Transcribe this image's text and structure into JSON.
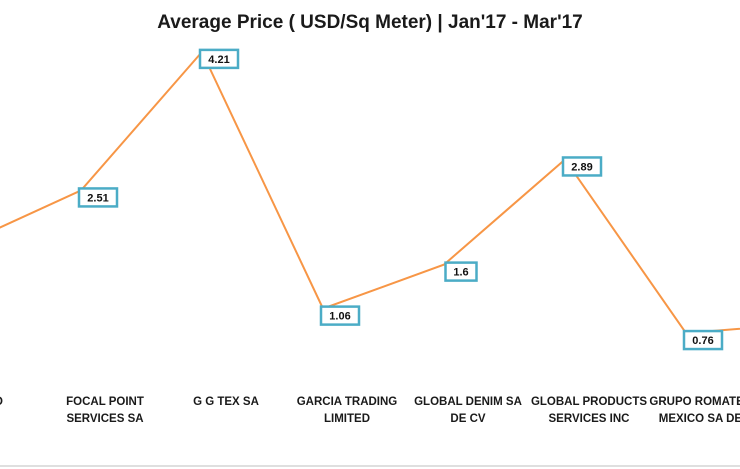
{
  "chart_data": {
    "type": "line",
    "title": "Average Price ( USD/Sq Meter) | Jan'17 - Mar'17",
    "xlabel": "",
    "ylabel": "",
    "categories": [
      [
        "O"
      ],
      [
        "FOCAL POINT",
        "SERVICES SA"
      ],
      [
        "G G TEX SA"
      ],
      [
        "GARCIA TRADING",
        "LIMITED"
      ],
      [
        "GLOBAL DENIM SA",
        "DE CV"
      ],
      [
        "GLOBAL PRODUCTS",
        "SERVICES INC"
      ],
      [
        "GRUPO ROMATEX DE",
        "MEXICO SA DE CV"
      ],
      [
        ""
      ]
    ],
    "values": [
      1.83,
      2.51,
      4.21,
      1.06,
      1.6,
      2.89,
      0.76,
      0.88
    ],
    "data_labels": [
      "",
      "2.51",
      "4.21",
      "1.06",
      "1.6",
      "2.89",
      "0.76",
      ""
    ],
    "ylim": [
      0,
      5
    ],
    "line_color": "#F79646",
    "label_border_color": "#4BACC6",
    "grid": false,
    "legend": "none"
  }
}
